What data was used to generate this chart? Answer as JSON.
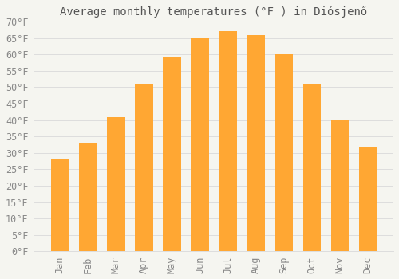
{
  "title": "Average monthly temperatures (°F ) in Diósjenő",
  "months": [
    "Jan",
    "Feb",
    "Mar",
    "Apr",
    "May",
    "Jun",
    "Jul",
    "Aug",
    "Sep",
    "Oct",
    "Nov",
    "Dec"
  ],
  "values": [
    28,
    33,
    41,
    51,
    59,
    65,
    67,
    66,
    60,
    51,
    40,
    32
  ],
  "bar_color": "#FFA733",
  "bar_edge_color": "#E8902A",
  "background_color": "#F5F5F0",
  "grid_color": "#DDDDDD",
  "ylim": [
    0,
    70
  ],
  "yticks": [
    0,
    5,
    10,
    15,
    20,
    25,
    30,
    35,
    40,
    45,
    50,
    55,
    60,
    65,
    70
  ],
  "title_fontsize": 10,
  "tick_fontsize": 8.5,
  "tick_color": "#888888",
  "title_color": "#555555"
}
